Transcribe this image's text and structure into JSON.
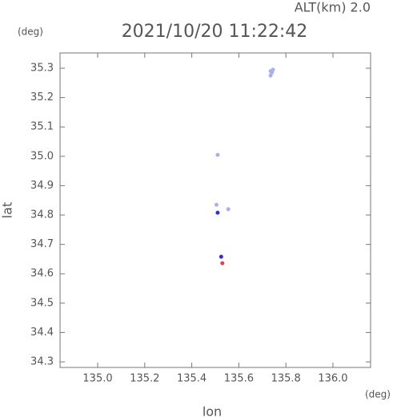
{
  "chart_data": {
    "type": "scatter",
    "title": "2021/10/20 11:22:42",
    "subtitle": "ALT(km) 2.0",
    "x_label": "lon",
    "y_label": "lat",
    "x_unit": "(deg)",
    "y_unit": "(deg)",
    "xlim": [
      134.84,
      136.16
    ],
    "ylim": [
      34.281,
      35.352
    ],
    "xticks": [
      {
        "value": 135,
        "label": "135.0"
      },
      135.2,
      135.4,
      135.6,
      135.8,
      {
        "value": 136,
        "label": "136.0"
      }
    ],
    "yticks": [
      34.3,
      34.4,
      34.5,
      34.6,
      34.7,
      34.8,
      34.9,
      {
        "value": 35,
        "label": "35.0"
      },
      35.1,
      35.2,
      35.3
    ],
    "series": [
      {
        "color": "#aab0ee",
        "x": [
          135.74,
          135.735,
          135.745,
          135.735,
          135.51,
          135.555,
          135.505
        ],
        "values": [
          35.285,
          35.275,
          35.295,
          35.29,
          35.005,
          34.82,
          34.835
        ]
      },
      {
        "color": "#3030d0",
        "x": [
          135.51,
          135.525
        ],
        "values": [
          34.808,
          34.658
        ]
      },
      {
        "color": "#e04060",
        "x": [
          135.53
        ],
        "values": [
          34.636
        ]
      }
    ]
  }
}
